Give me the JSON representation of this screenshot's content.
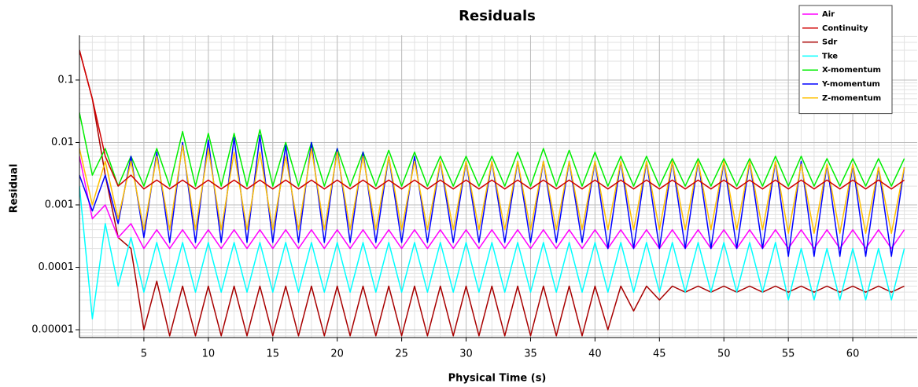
{
  "chart_data": {
    "type": "line",
    "title": "Residuals",
    "x_label": "Physical Time (s)",
    "y_label": "Residual",
    "log_y": true,
    "grid": true,
    "legend": "upper right",
    "xlim": [
      0,
      65
    ],
    "xticks": [
      5,
      10,
      15,
      20,
      25,
      30,
      35,
      40,
      45,
      50,
      55,
      60
    ],
    "ylim": [
      7.5e-06,
      0.52
    ],
    "yticks": [
      1e-05,
      0.0001,
      0.001,
      0.01,
      0.1
    ],
    "x": [
      0,
      1,
      2,
      3,
      4,
      5,
      6,
      7,
      8,
      9,
      10,
      11,
      12,
      13,
      14,
      15,
      16,
      17,
      18,
      19,
      20,
      21,
      22,
      23,
      24,
      25,
      26,
      27,
      28,
      29,
      30,
      31,
      32,
      33,
      34,
      35,
      36,
      37,
      38,
      39,
      40,
      41,
      42,
      43,
      44,
      45,
      46,
      47,
      48,
      49,
      50,
      51,
      52,
      53,
      54,
      55,
      56,
      57,
      58,
      59,
      60,
      61,
      62,
      63,
      64
    ],
    "series": [
      {
        "name": "Air",
        "color": "#ff00ff",
        "values": [
          0.006,
          0.0006,
          0.001,
          0.0003,
          0.0005,
          0.0002,
          0.0004,
          0.0002,
          0.0004,
          0.0002,
          0.0004,
          0.0002,
          0.0004,
          0.0002,
          0.0004,
          0.0002,
          0.0004,
          0.0002,
          0.0004,
          0.0002,
          0.0004,
          0.0002,
          0.0004,
          0.0002,
          0.0004,
          0.0002,
          0.0004,
          0.0002,
          0.0004,
          0.0002,
          0.0004,
          0.0002,
          0.0004,
          0.0002,
          0.0004,
          0.0002,
          0.0004,
          0.0002,
          0.0004,
          0.0002,
          0.0004,
          0.0002,
          0.0004,
          0.0002,
          0.0004,
          0.0002,
          0.0004,
          0.0002,
          0.0004,
          0.0002,
          0.0004,
          0.0002,
          0.0004,
          0.0002,
          0.0004,
          0.0002,
          0.0004,
          0.0002,
          0.0004,
          0.0002,
          0.0004,
          0.0002,
          0.0004,
          0.0002,
          0.0004
        ]
      },
      {
        "name": "Continuity",
        "color": "#d00000",
        "values": [
          0.3,
          0.05,
          0.006,
          0.002,
          0.003,
          0.0018,
          0.0025,
          0.0018,
          0.0025,
          0.0018,
          0.0025,
          0.0018,
          0.0025,
          0.0018,
          0.0025,
          0.0018,
          0.0025,
          0.0018,
          0.0025,
          0.0018,
          0.0025,
          0.0018,
          0.0025,
          0.0018,
          0.0025,
          0.0018,
          0.0025,
          0.0018,
          0.0025,
          0.0018,
          0.0025,
          0.0018,
          0.0025,
          0.0018,
          0.0025,
          0.0018,
          0.0025,
          0.0018,
          0.0025,
          0.0018,
          0.0025,
          0.0018,
          0.0025,
          0.0018,
          0.0025,
          0.0018,
          0.0025,
          0.0018,
          0.0025,
          0.0018,
          0.0025,
          0.0018,
          0.0025,
          0.0018,
          0.0025,
          0.0018,
          0.0025,
          0.0018,
          0.0025,
          0.0018,
          0.0025,
          0.0018,
          0.0025,
          0.0018,
          0.0025
        ]
      },
      {
        "name": "Sdr",
        "color": "#a80000",
        "values": [
          0.3,
          0.05,
          0.003,
          0.0003,
          0.0002,
          1e-05,
          6e-05,
          8e-06,
          5e-05,
          8e-06,
          5e-05,
          8e-06,
          5e-05,
          8e-06,
          5e-05,
          8e-06,
          5e-05,
          8e-06,
          5e-05,
          8e-06,
          5e-05,
          8e-06,
          5e-05,
          8e-06,
          5e-05,
          8e-06,
          5e-05,
          8e-06,
          5e-05,
          8e-06,
          5e-05,
          8e-06,
          5e-05,
          8e-06,
          5e-05,
          8e-06,
          5e-05,
          8e-06,
          5e-05,
          8e-06,
          5e-05,
          1e-05,
          5e-05,
          2e-05,
          5e-05,
          3e-05,
          5e-05,
          4e-05,
          5e-05,
          4e-05,
          5e-05,
          4e-05,
          5e-05,
          4e-05,
          5e-05,
          4e-05,
          5e-05,
          4e-05,
          5e-05,
          4e-05,
          5e-05,
          4e-05,
          5e-05,
          4e-05,
          5e-05
        ]
      },
      {
        "name": "Tke",
        "color": "#00ffff",
        "values": [
          0.002,
          1.5e-05,
          0.0005,
          5e-05,
          0.0003,
          4e-05,
          0.00025,
          4e-05,
          0.00025,
          4e-05,
          0.00025,
          4e-05,
          0.00025,
          4e-05,
          0.00025,
          4e-05,
          0.00025,
          4e-05,
          0.00025,
          4e-05,
          0.00025,
          4e-05,
          0.00025,
          4e-05,
          0.00025,
          4e-05,
          0.00025,
          4e-05,
          0.00025,
          4e-05,
          0.00025,
          4e-05,
          0.00025,
          4e-05,
          0.00025,
          4e-05,
          0.00025,
          4e-05,
          0.00025,
          4e-05,
          0.00025,
          4e-05,
          0.00025,
          4e-05,
          0.00025,
          4e-05,
          0.00025,
          4e-05,
          0.00025,
          4e-05,
          0.00025,
          4e-05,
          0.00025,
          4e-05,
          0.00025,
          3e-05,
          0.0002,
          3e-05,
          0.0002,
          3e-05,
          0.0002,
          3e-05,
          0.0002,
          3e-05,
          0.0002
        ]
      },
      {
        "name": "X-momentum",
        "color": "#00ee00",
        "values": [
          0.03,
          0.003,
          0.008,
          0.002,
          0.006,
          0.002,
          0.008,
          0.002,
          0.015,
          0.002,
          0.014,
          0.002,
          0.014,
          0.002,
          0.016,
          0.002,
          0.01,
          0.002,
          0.01,
          0.002,
          0.008,
          0.002,
          0.007,
          0.002,
          0.0075,
          0.002,
          0.007,
          0.002,
          0.006,
          0.002,
          0.006,
          0.002,
          0.006,
          0.002,
          0.007,
          0.002,
          0.008,
          0.002,
          0.0075,
          0.002,
          0.007,
          0.002,
          0.006,
          0.002,
          0.006,
          0.002,
          0.0055,
          0.002,
          0.0055,
          0.002,
          0.0055,
          0.002,
          0.0055,
          0.002,
          0.006,
          0.002,
          0.006,
          0.002,
          0.0055,
          0.002,
          0.0055,
          0.002,
          0.0055,
          0.002,
          0.0055
        ]
      },
      {
        "name": "Y-momentum",
        "color": "#0000ff",
        "values": [
          0.003,
          0.0008,
          0.003,
          0.0005,
          0.006,
          0.0003,
          0.007,
          0.00025,
          0.01,
          0.00025,
          0.011,
          0.00025,
          0.012,
          0.00025,
          0.013,
          0.00025,
          0.009,
          0.00025,
          0.01,
          0.00025,
          0.008,
          0.00025,
          0.007,
          0.00025,
          0.006,
          0.00025,
          0.006,
          0.00025,
          0.005,
          0.00025,
          0.005,
          0.00025,
          0.005,
          0.00025,
          0.005,
          0.00025,
          0.005,
          0.00025,
          0.005,
          0.00025,
          0.005,
          0.0002,
          0.005,
          0.0002,
          0.005,
          0.0002,
          0.005,
          0.0002,
          0.005,
          0.0002,
          0.005,
          0.0002,
          0.005,
          0.0002,
          0.005,
          0.00015,
          0.005,
          0.00015,
          0.0045,
          0.00015,
          0.0045,
          0.00015,
          0.004,
          0.00015,
          0.004
        ]
      },
      {
        "name": "Z-momentum",
        "color": "#ffc000",
        "values": [
          0.008,
          0.001,
          0.005,
          0.0006,
          0.005,
          0.0004,
          0.006,
          0.0004,
          0.009,
          0.0004,
          0.008,
          0.0004,
          0.007,
          0.0004,
          0.007,
          0.0004,
          0.006,
          0.0004,
          0.008,
          0.0004,
          0.007,
          0.0004,
          0.006,
          0.0004,
          0.006,
          0.0004,
          0.005,
          0.0004,
          0.005,
          0.0004,
          0.005,
          0.0004,
          0.005,
          0.0004,
          0.005,
          0.0004,
          0.005,
          0.0004,
          0.005,
          0.0004,
          0.005,
          0.0004,
          0.005,
          0.0004,
          0.005,
          0.0004,
          0.005,
          0.0004,
          0.005,
          0.0004,
          0.005,
          0.0004,
          0.005,
          0.0004,
          0.005,
          0.00035,
          0.0045,
          0.00035,
          0.0045,
          0.00035,
          0.0045,
          0.00035,
          0.004,
          0.00035,
          0.004
        ]
      }
    ]
  }
}
